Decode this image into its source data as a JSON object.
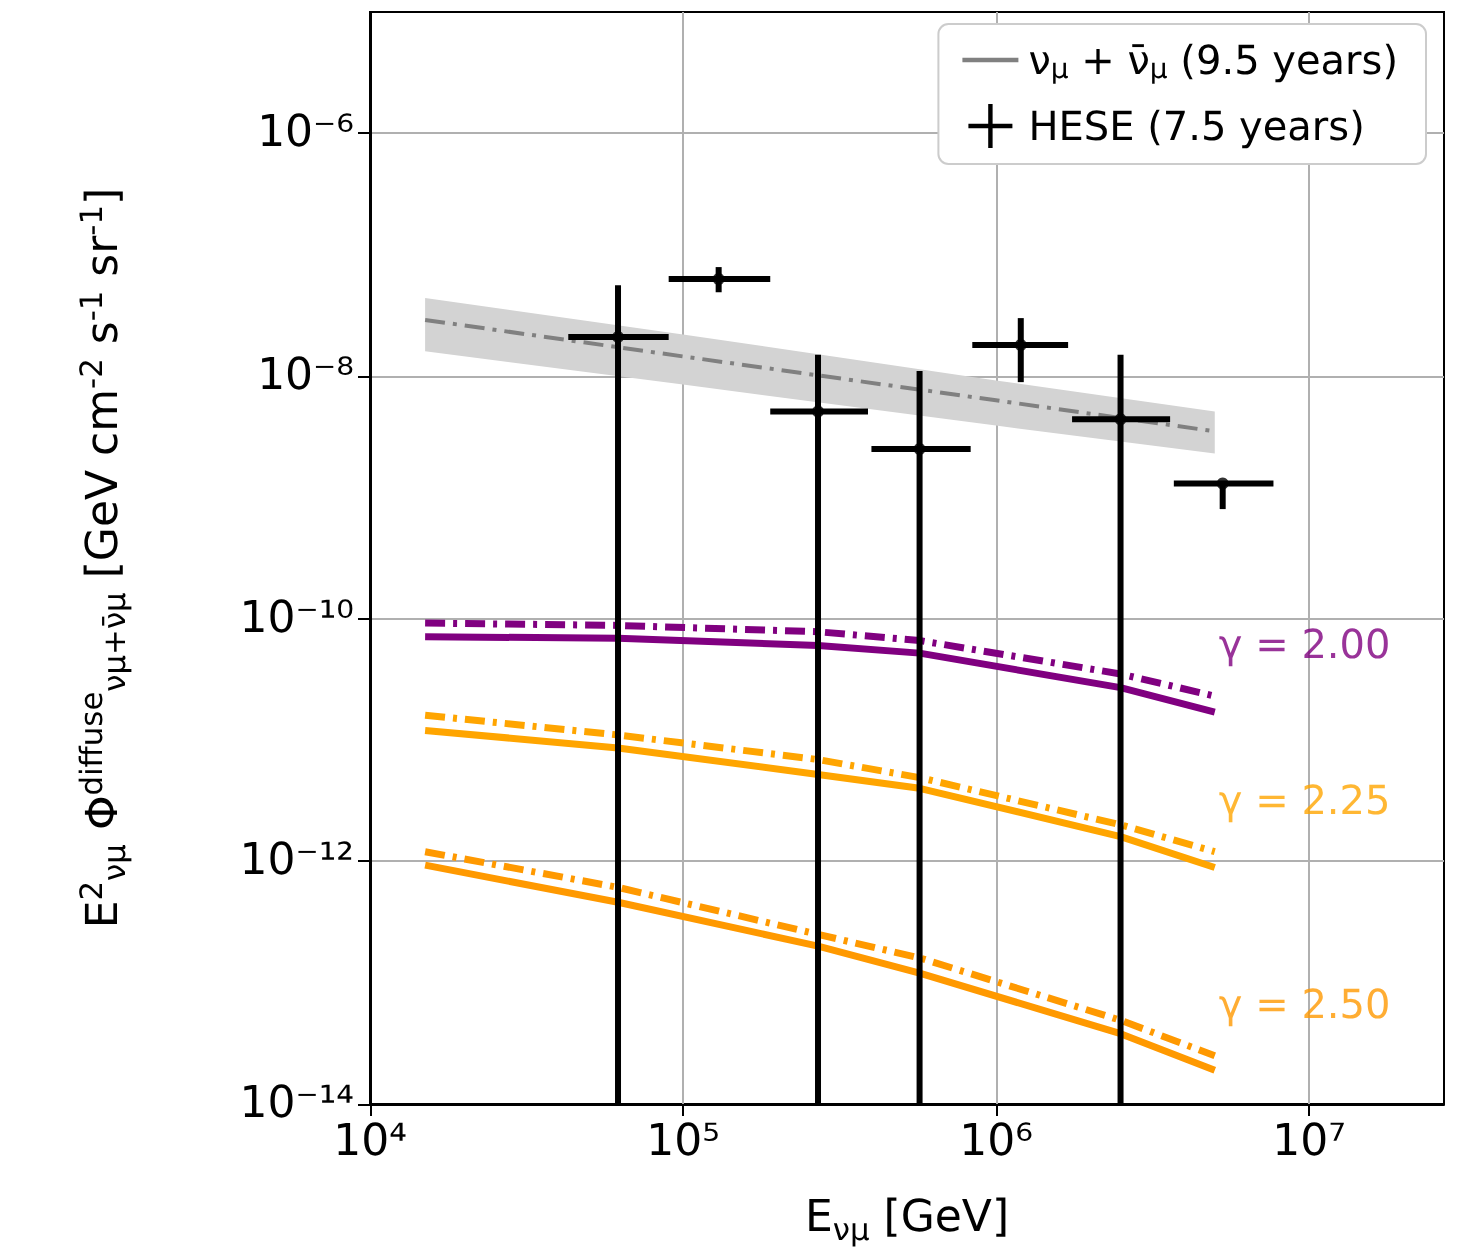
{
  "chart_data": {
    "type": "line",
    "xlabel": "E$_{νμ}$ [GeV]",
    "ylabel": "E$^{2}$$_{νμ}$ Φ$^{diffuse}$$_{νμ+ν̄μ}$ [GeV cm$^{-2}$ s$^{-1}$ sr$^{-1}$]",
    "log": "xy",
    "grid": true,
    "legend": "top right",
    "xlim": [
      10000,
      27000000
    ],
    "xticks": [
      {
        "value": 10000,
        "label": "10⁴"
      },
      {
        "value": 100000,
        "label": "10⁵"
      },
      {
        "value": 1000000,
        "label": "10⁶"
      },
      {
        "value": 10000000,
        "label": "10⁷"
      }
    ],
    "ylim": [
      1e-14,
      1e-05
    ],
    "yticks": [
      {
        "value": 1e-14,
        "label": "10⁻¹⁴"
      },
      {
        "value": 1e-12,
        "label": "10⁻¹²"
      },
      {
        "value": 1e-10,
        "label": "10⁻¹⁰"
      },
      {
        "value": 1e-08,
        "label": "10⁻⁸"
      },
      {
        "value": 1e-06,
        "label": "10⁻⁶"
      }
    ],
    "series": [
      {
        "name": "ν$_{μ}$ + ν̄$_{μ}$ (9.5 years)",
        "color": "#808080",
        "line_style": "dashed",
        "x": [
          15000,
          100000,
          1000000,
          5000000
        ],
        "values": [
          2.9e-08,
          1.45e-08,
          6.3e-09,
          3.5e-09
        ],
        "lower": [
          1.6e-08,
          8.5e-09,
          3.9e-09,
          2.3e-09
        ],
        "upper": [
          4.4e-08,
          2.2e-08,
          9.2e-09,
          5.1e-09
        ]
      },
      {
        "name": "HESE (7.5 years)",
        "type": "scatter",
        "color": "#000000",
        "x": [
          62000,
          130000,
          270000,
          570000,
          1200000,
          2500000,
          5300000
        ],
        "values": [
          2.1e-08,
          6.3e-08,
          5.1e-09,
          2.5e-09,
          1.8e-08,
          4.4e-09,
          1.3e-09
        ],
        "errors": [
          [
            1e-14,
            5.6e-08
          ],
          [
            4.9e-08,
            7.9e-08
          ],
          [
            1e-14,
            1.5e-08
          ],
          [
            1e-14,
            1.1e-08
          ],
          [
            8.9e-09,
            3e-08
          ],
          [
            1e-14,
            1.5e-08
          ],
          [
            8e-10,
            1.3e-09
          ]
        ],
        "xerrors": [
          [
            43000,
            90000
          ],
          [
            90000,
            190000
          ],
          [
            190000,
            390000
          ],
          [
            400000,
            830000
          ],
          [
            840000,
            1700000
          ],
          [
            1750000,
            3600000
          ],
          [
            3700000,
            7700000
          ]
        ]
      },
      {
        "color": "#800080",
        "line_style": "solid",
        "x": [
          15000,
          62000,
          270000,
          570000,
          2500000,
          5000000
        ],
        "values": [
          7.1e-11,
          6.9e-11,
          6e-11,
          5.2e-11,
          2.7e-11,
          1.7e-11
        ]
      },
      {
        "color": "#800080",
        "line_style": "dashed",
        "x": [
          15000,
          62000,
          270000,
          570000,
          2500000,
          5000000
        ],
        "values": [
          9.2e-11,
          8.8e-11,
          7.8e-11,
          6.6e-11,
          3.5e-11,
          2.3e-11
        ]
      },
      {
        "color": "#ffa500",
        "line_style": "solid",
        "x": [
          15000,
          62000,
          270000,
          570000,
          2500000,
          5000000
        ],
        "values": [
          1.2e-11,
          8.6e-12,
          5.2e-12,
          4e-12,
          1.6e-12,
          8.9e-13
        ]
      },
      {
        "color": "#ffa500",
        "line_style": "dashed",
        "x": [
          15000,
          62000,
          270000,
          570000,
          2500000,
          5000000
        ],
        "values": [
          1.6e-11,
          1.1e-11,
          6.9e-12,
          4.9e-12,
          2e-12,
          1.2e-12
        ]
      },
      {
        "color": "#ff9900",
        "line_style": "solid",
        "x": [
          15000,
          62000,
          270000,
          570000,
          2500000,
          5000000
        ],
        "values": [
          9.3e-13,
          4.6e-13,
          2e-13,
          1.2e-13,
          3.8e-14,
          1.9e-14
        ]
      },
      {
        "color": "#ff9900",
        "line_style": "dashed",
        "x": [
          15000,
          62000,
          270000,
          570000,
          2500000,
          5000000
        ],
        "values": [
          1.2e-12,
          6.1e-13,
          2.5e-13,
          1.6e-13,
          4.9e-14,
          2.5e-14
        ]
      }
    ],
    "annotations": [
      "γ = 2.00",
      "γ = 2.25",
      "γ = 2.50"
    ]
  }
}
